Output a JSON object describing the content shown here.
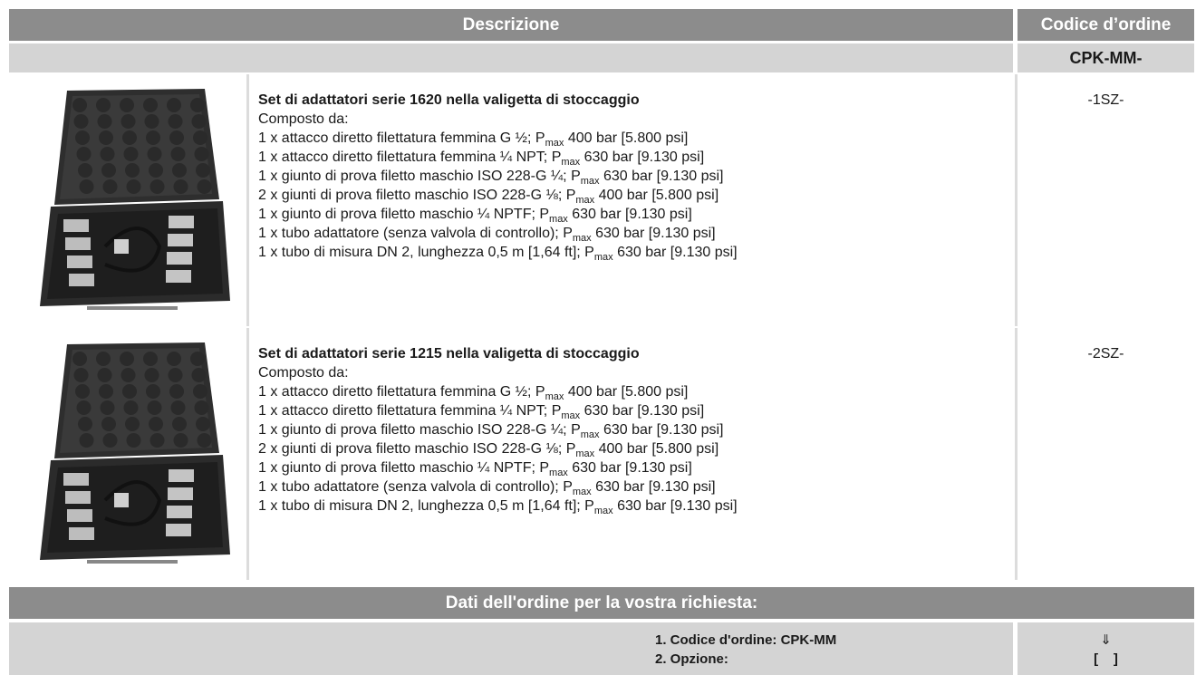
{
  "header": {
    "description": "Descrizione",
    "order_code": "Codice d’ordine"
  },
  "subheader": {
    "code_prefix": "CPK-MM-"
  },
  "rows": [
    {
      "title": "Set di adattatori serie 1620 nella valigetta di stoccaggio",
      "intro": "Composto da:",
      "code": "-1SZ-",
      "items": [
        {
          "text": "1 x attacco diretto filettatura femmina G ½; P",
          "sub": "max",
          "rest": " 400 bar [5.800 psi]"
        },
        {
          "text": "1 x attacco diretto filettatura femmina ¼ NPT; P",
          "sub": "max",
          "rest": " 630 bar [9.130 psi]"
        },
        {
          "text": "1 x giunto di prova filetto maschio ISO 228-G ¼; P",
          "sub": "max",
          "rest": " 630 bar [9.130 psi]"
        },
        {
          "text": "2 x giunti di prova filetto maschio ISO 228-G ⅛; P",
          "sub": "max",
          "rest": " 400 bar [5.800 psi]"
        },
        {
          "text": "1 x giunto di prova filetto maschio ¼ NPTF; P",
          "sub": "max",
          "rest": " 630 bar [9.130 psi]"
        },
        {
          "text": "1 x tubo adattatore (senza valvola di controllo); P",
          "sub": "max",
          "rest": " 630 bar [9.130 psi]"
        },
        {
          "text": "1 x tubo di misura DN 2, lunghezza 0,5 m [1,64 ft]; P",
          "sub": "max",
          "rest": " 630 bar [9.130 psi]"
        }
      ]
    },
    {
      "title": "Set di adattatori serie 1215 nella valigetta di stoccaggio",
      "intro": "Composto da:",
      "code": "-2SZ-",
      "items": [
        {
          "text": "1 x attacco diretto filettatura femmina G ½; P",
          "sub": "max",
          "rest": " 400 bar [5.800 psi]"
        },
        {
          "text": "1 x attacco diretto filettatura femmina ¼ NPT; P",
          "sub": "max",
          "rest": " 630 bar [9.130 psi]"
        },
        {
          "text": "1 x giunto di prova filetto maschio ISO 228-G ¼; P",
          "sub": "max",
          "rest": " 630 bar [9.130 psi]"
        },
        {
          "text": "2 x giunti di prova filetto maschio ISO 228-G ⅛; P",
          "sub": "max",
          "rest": " 400 bar [5.800 psi]"
        },
        {
          "text": "1 x giunto di prova filetto maschio ¼ NPTF; P",
          "sub": "max",
          "rest": " 630 bar [9.130 psi]"
        },
        {
          "text": "1 x tubo adattatore (senza valvola di controllo); P",
          "sub": "max",
          "rest": " 630 bar [9.130 psi]"
        },
        {
          "text": "1 x tubo di misura DN 2, lunghezza 0,5 m [1,64 ft]; P",
          "sub": "max",
          "rest": " 630 bar [9.130 psi]"
        }
      ]
    }
  ],
  "order_info": {
    "title": "Dati dell'ordine per la vostra richiesta:",
    "steps": [
      "1. Codice d'ordine: CPK-MM",
      "2. Opzione:"
    ],
    "marks": [
      "⇓",
      "[    ]"
    ]
  }
}
